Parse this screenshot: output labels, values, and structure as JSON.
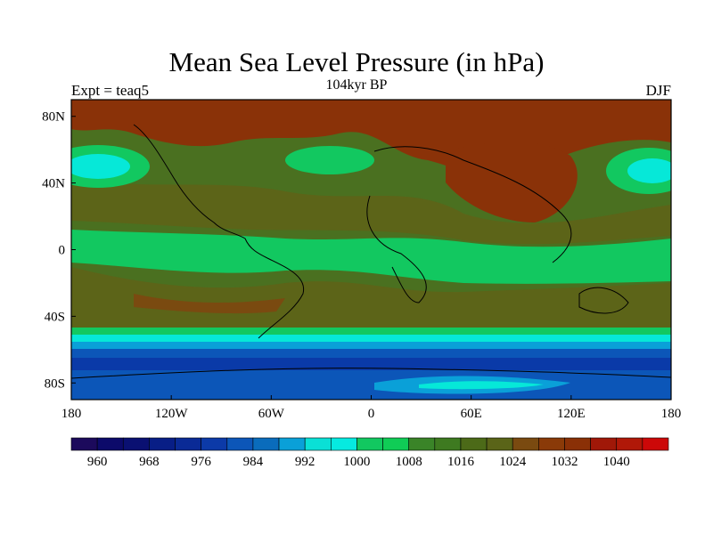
{
  "title": "Mean Sea Level Pressure (in hPa)",
  "subtitle": "104kyr BP",
  "left_string": "Expt = teaq5",
  "right_string": "DJF",
  "lat_labels": [
    "80N",
    "40N",
    "0",
    "40S",
    "80S"
  ],
  "lat_values": [
    80,
    40,
    0,
    -40,
    -80
  ],
  "lon_labels": [
    "180",
    "120W",
    "60W",
    "0",
    "60E",
    "120E",
    "180"
  ],
  "lon_values": [
    -180,
    -120,
    -60,
    0,
    60,
    120,
    180
  ],
  "map_extent": {
    "lon_min": -180,
    "lon_max": 180,
    "lat_min": -90,
    "lat_max": 90
  },
  "colorbar": {
    "labels": [
      "960",
      "968",
      "976",
      "984",
      "992",
      "1000",
      "1008",
      "1016",
      "1024",
      "1032",
      "1040"
    ],
    "colors": [
      "#1c0a5c",
      "#0c0a6a",
      "#0a1072",
      "#081e86",
      "#0a2a96",
      "#0c3aa8",
      "#0c56b8",
      "#0a6cbc",
      "#0aa0d8",
      "#0ae0d6",
      "#06eae0",
      "#12c860",
      "#10cc56",
      "#3a8428",
      "#3e7a20",
      "#4c6a18",
      "#5a6418",
      "#7a4a10",
      "#8a3a08",
      "#8a3006",
      "#a01808",
      "#b01808",
      "#cc0808"
    ]
  },
  "colors": {
    "high": "#8a3208",
    "mid_high": "#5c6418",
    "mid": "#3c8428",
    "green": "#12c860",
    "cyan": "#06e8d8",
    "light_blue": "#0aa0d8",
    "blue": "#0c56b8",
    "dark_blue": "#0a3aa8"
  }
}
